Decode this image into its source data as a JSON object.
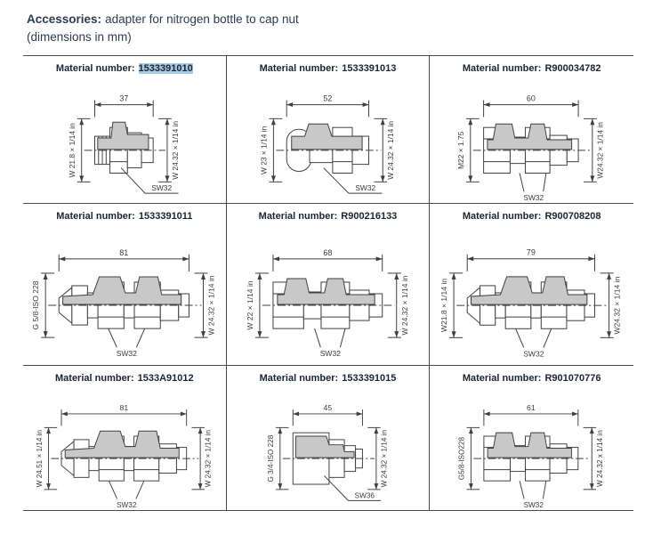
{
  "title": {
    "bold": "Accessories:",
    "rest": "adapter for nitrogen bottle to cap nut",
    "line2": "(dimensions in mm)"
  },
  "labels": {
    "material_number": "Material number:"
  },
  "colors": {
    "selection_highlight": "#a9cae4",
    "drawing_line": "#3f3f3f",
    "section_fill_gray": "#c8c8c8",
    "text": "#1c2433"
  },
  "cells": [
    {
      "material_number": "1533391010",
      "highlighted": true,
      "top_dim": "37",
      "left_label": "W 21.8 × 1/14 in",
      "right_label": "W 24.32 × 1/14 in",
      "sw_label": "SW32"
    },
    {
      "material_number": "1533391013",
      "highlighted": false,
      "top_dim": "52",
      "left_label": "W 23 × 1/14 in",
      "right_label": "W 24.32 × 1/14 in",
      "sw_label": "SW32"
    },
    {
      "material_number": "R900034782",
      "highlighted": false,
      "top_dim": "60",
      "left_label": "M22 × 1.75",
      "right_label": "W24.32 × 1/14 in",
      "sw_label": "SW32"
    },
    {
      "material_number": "1533391011",
      "highlighted": false,
      "top_dim": "81",
      "left_label": "G 5/8-ISO 228",
      "right_label": "W 24.32 × 1/14 in",
      "sw_label": "SW32"
    },
    {
      "material_number": "R900216133",
      "highlighted": false,
      "top_dim": "68",
      "left_label": "W 22 × 1/14 in",
      "right_label": "W 24.32 × 1/14 in",
      "sw_label": "SW32"
    },
    {
      "material_number": "R900708208",
      "highlighted": false,
      "top_dim": "79",
      "left_label": "W21.8 × 1/14 in",
      "right_label": "W24.32 × 1/14 in",
      "sw_label": "SW32"
    },
    {
      "material_number": "1533A91012",
      "highlighted": false,
      "top_dim": "81",
      "left_label": "W 24.51 × 1/14 in",
      "right_label": "W 24.32 × 1/14 in",
      "sw_label": "SW32"
    },
    {
      "material_number": "1533391015",
      "highlighted": false,
      "top_dim": "45",
      "left_label": "G 3/4-ISO 228",
      "right_label": "W 24.32 × 1/14 in",
      "sw_label": "SW36"
    },
    {
      "material_number": "R901070776",
      "highlighted": false,
      "top_dim": "61",
      "left_label": "G5/8-ISO228",
      "right_label": "W 24.32 x 1/14 in",
      "sw_label": "SW32"
    }
  ]
}
